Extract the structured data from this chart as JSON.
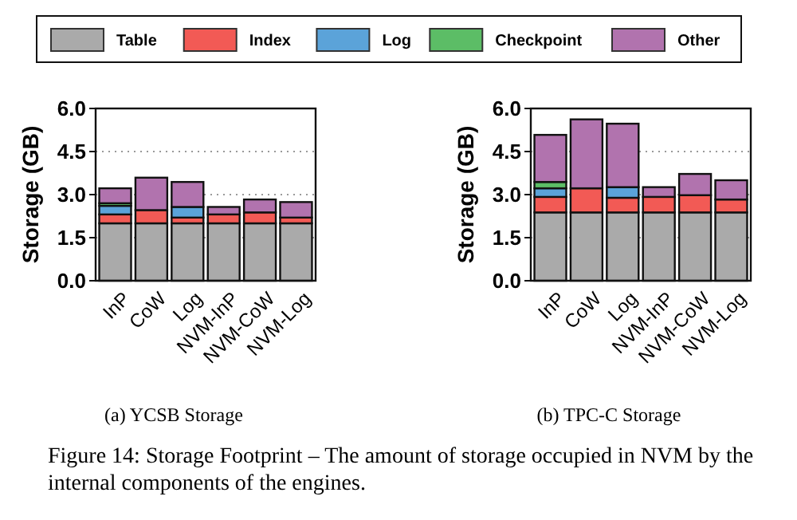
{
  "chart_data": [
    {
      "type": "bar",
      "title": "(a) YCSB Storage",
      "ylabel": "Storage (GB)",
      "stacked": true,
      "grid": "y",
      "legend": "top",
      "categories": [
        "InP",
        "CoW",
        "Log",
        "NVM-InP",
        "NVM-CoW",
        "NVM-Log"
      ],
      "ylim": [
        0,
        6
      ],
      "yticks": [
        {
          "value": 0,
          "label": "0.0"
        },
        {
          "value": 1.5,
          "label": "1.5"
        },
        {
          "value": 3,
          "label": "3.0"
        },
        {
          "value": 4.5,
          "label": "4.5"
        },
        {
          "value": 6,
          "label": "6.0"
        }
      ],
      "annotations": [
        "Figure 14: Storage Footprint – The amount of storage occupied in NVM by the internal components of the engines."
      ],
      "series": [
        {
          "name": "Table",
          "color": "#aaaaaa",
          "values": [
            2.0,
            2.0,
            2.0,
            2.0,
            2.0,
            2.0
          ]
        },
        {
          "name": "Index",
          "color": "#f25a55",
          "values": [
            0.31,
            0.46,
            0.2,
            0.31,
            0.38,
            0.2
          ]
        },
        {
          "name": "Log",
          "color": "#5ba3d9",
          "values": [
            0.3,
            null,
            0.37,
            null,
            null,
            null
          ]
        },
        {
          "name": "Checkpoint",
          "color": "#5cbd66",
          "values": [
            0.09,
            null,
            null,
            null,
            null,
            null
          ]
        },
        {
          "name": "Other",
          "color": "#b173ae",
          "values": [
            0.52,
            1.13,
            0.87,
            0.26,
            0.45,
            0.54
          ]
        }
      ]
    },
    {
      "type": "bar",
      "title": "(b) TPC-C Storage",
      "ylabel": "Storage (GB)",
      "stacked": true,
      "grid": "y",
      "categories": [
        "InP",
        "CoW",
        "Log",
        "NVM-InP",
        "NVM-CoW",
        "NVM-Log"
      ],
      "ylim": [
        0,
        6
      ],
      "yticks": [
        {
          "value": 0,
          "label": "0.0"
        },
        {
          "value": 1.5,
          "label": "1.5"
        },
        {
          "value": 3,
          "label": "3.0"
        },
        {
          "value": 4.5,
          "label": "4.5"
        },
        {
          "value": 6,
          "label": "6.0"
        }
      ],
      "series": [
        {
          "color": "#aaaaaa",
          "values": [
            2.38,
            2.38,
            2.38,
            2.38,
            2.38,
            2.38
          ]
        },
        {
          "color": "#f25a55",
          "values": [
            0.54,
            0.84,
            0.51,
            0.54,
            0.6,
            0.45
          ]
        },
        {
          "color": "#5ba3d9",
          "values": [
            0.3,
            null,
            0.37,
            null,
            null,
            null
          ]
        },
        {
          "color": "#5cbd66",
          "values": [
            0.22,
            null,
            null,
            null,
            null,
            null
          ]
        },
        {
          "color": "#b173ae",
          "values": [
            1.64,
            2.4,
            2.21,
            0.34,
            0.74,
            0.67
          ]
        }
      ]
    }
  ]
}
